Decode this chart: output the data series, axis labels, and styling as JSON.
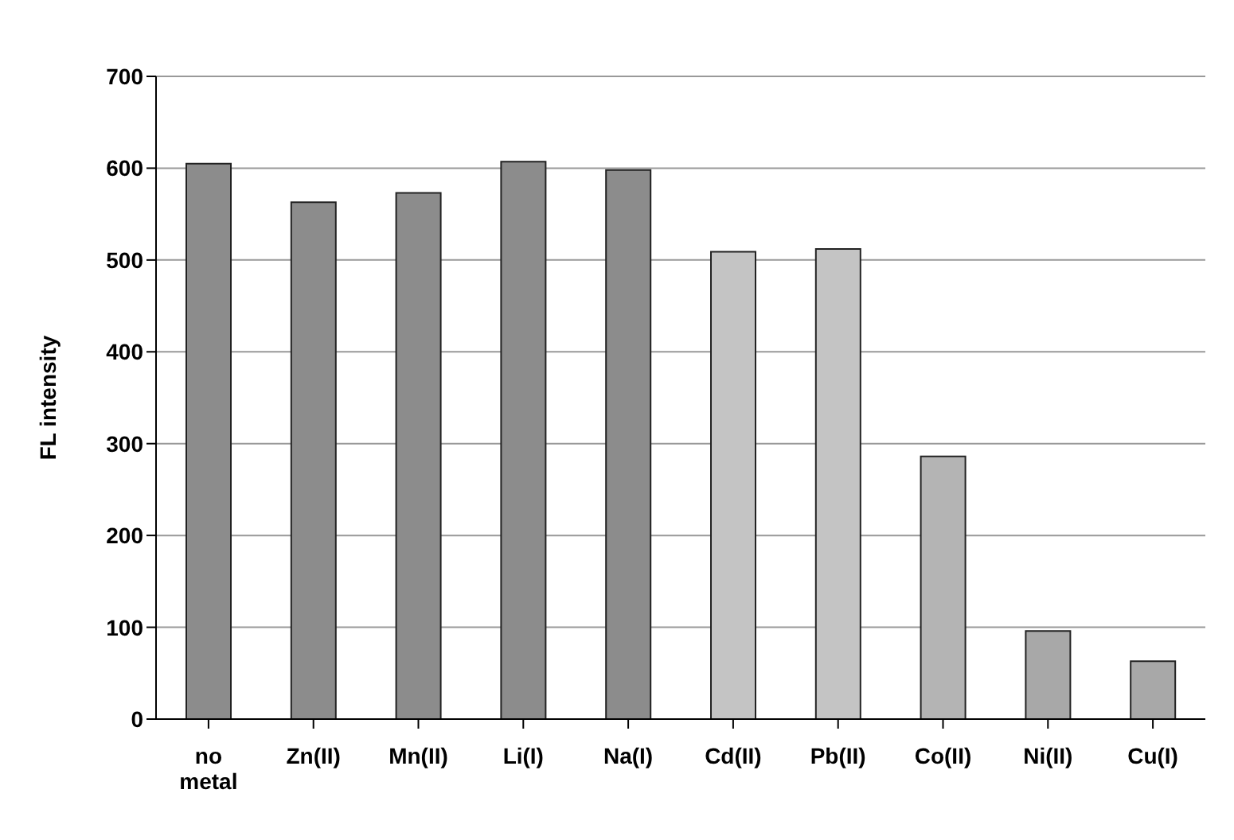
{
  "chart_data": {
    "type": "bar",
    "ylabel": "FL intensity",
    "categories": [
      "no metal",
      "Zn(II)",
      "Mn(II)",
      "Li(I)",
      "Na(I)",
      "Cd(II)",
      "Pb(II)",
      "Co(II)",
      "Ni(II)",
      "Cu(I)"
    ],
    "values": [
      605,
      563,
      573,
      607,
      598,
      509,
      512,
      286,
      96,
      63
    ],
    "colors": [
      "#8c8c8c",
      "#8c8c8c",
      "#8c8c8c",
      "#8c8c8c",
      "#8c8c8c",
      "#c4c4c4",
      "#c4c4c4",
      "#b4b4b4",
      "#a8a8a8",
      "#a8a8a8"
    ],
    "ylim": [
      0,
      700
    ],
    "yticks": [
      0,
      100,
      200,
      300,
      400,
      500,
      600,
      700
    ],
    "grid": "y"
  }
}
